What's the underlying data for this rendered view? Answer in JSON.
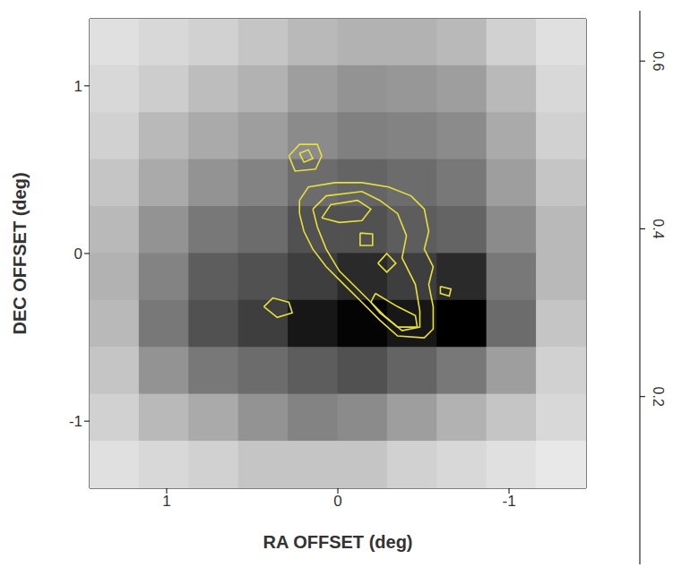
{
  "chart_data": {
    "type": "heatmap",
    "x_label": "RA OFFSET (deg)",
    "y_label": "DEC OFFSET (deg)",
    "xlim": [
      1.45,
      -1.45
    ],
    "xticks": [
      1,
      0,
      -1
    ],
    "ylim": [
      -1.4,
      1.4
    ],
    "yticks": [
      -1,
      0,
      1
    ],
    "x_centers": [
      1.305,
      1.015,
      0.725,
      0.435,
      0.145,
      -0.145,
      -0.435,
      -0.725,
      -1.015,
      -1.305
    ],
    "y_centers": [
      1.26,
      0.98,
      0.7,
      0.42,
      0.14,
      -0.14,
      -0.42,
      -0.7,
      -0.98,
      -1.26
    ],
    "cells": [
      [
        0.08,
        0.1,
        0.12,
        0.15,
        0.18,
        0.2,
        0.2,
        0.18,
        0.12,
        0.08
      ],
      [
        0.1,
        0.13,
        0.17,
        0.2,
        0.25,
        0.28,
        0.27,
        0.25,
        0.18,
        0.1
      ],
      [
        0.12,
        0.18,
        0.22,
        0.25,
        0.3,
        0.33,
        0.32,
        0.3,
        0.22,
        0.12
      ],
      [
        0.15,
        0.22,
        0.28,
        0.32,
        0.38,
        0.4,
        0.38,
        0.35,
        0.25,
        0.15
      ],
      [
        0.18,
        0.28,
        0.35,
        0.38,
        0.45,
        0.45,
        0.42,
        0.4,
        0.3,
        0.18
      ],
      [
        0.2,
        0.32,
        0.42,
        0.45,
        0.5,
        0.55,
        0.5,
        0.55,
        0.35,
        0.18
      ],
      [
        0.18,
        0.35,
        0.45,
        0.5,
        0.6,
        0.65,
        0.6,
        0.68,
        0.38,
        0.15
      ],
      [
        0.15,
        0.28,
        0.35,
        0.38,
        0.42,
        0.45,
        0.4,
        0.35,
        0.25,
        0.12
      ],
      [
        0.12,
        0.18,
        0.22,
        0.28,
        0.32,
        0.3,
        0.25,
        0.2,
        0.15,
        0.1
      ],
      [
        0.08,
        0.1,
        0.12,
        0.15,
        0.15,
        0.15,
        0.12,
        0.1,
        0.08,
        0.06
      ]
    ],
    "colorbar_range": [
      0,
      0.66
    ],
    "colorbar_ticks": [
      0.2,
      0.4,
      0.6
    ],
    "color": "#e6e03c",
    "contours": [
      {
        "x": [
          0.224,
          0.172,
          0.016,
          -0.141,
          -0.297,
          -0.427,
          -0.505,
          -0.531,
          -0.505,
          -0.557,
          -0.531,
          -0.557,
          -0.557,
          -0.505,
          -0.349,
          -0.245,
          -0.141,
          -0.036,
          0.068,
          0.146,
          0.198,
          0.224
        ],
        "y": [
          0.317,
          0.397,
          0.423,
          0.423,
          0.397,
          0.344,
          0.265,
          0.132,
          0.026,
          -0.079,
          -0.185,
          -0.317,
          -0.45,
          -0.503,
          -0.492,
          -0.397,
          -0.291,
          -0.185,
          -0.079,
          0.026,
          0.132,
          0.238
        ]
      },
      {
        "x": [
          0.146,
          0.068,
          -0.141,
          -0.245,
          -0.349,
          -0.401,
          -0.375,
          -0.453,
          -0.479,
          -0.479,
          -0.375,
          -0.271,
          -0.141,
          -0.01,
          0.068,
          0.12
        ],
        "y": [
          0.265,
          0.344,
          0.37,
          0.317,
          0.238,
          0.106,
          -0.026,
          -0.185,
          -0.344,
          -0.439,
          -0.46,
          -0.37,
          -0.238,
          -0.106,
          0.026,
          0.159
        ]
      },
      {
        "x": [
          0.094,
          0.042,
          -0.115,
          -0.193,
          -0.141,
          -0.01
        ],
        "y": [
          0.212,
          0.291,
          0.317,
          0.265,
          0.196,
          0.185
        ]
      },
      {
        "x": [
          -0.13,
          -0.203,
          -0.203,
          -0.13
        ],
        "y": [
          0.122,
          0.116,
          0.048,
          0.048
        ]
      },
      {
        "x": [
          -0.234,
          -0.286,
          -0.339,
          -0.286
        ],
        "y": [
          -0.058,
          0.0,
          -0.058,
          -0.111
        ]
      },
      {
        "x": [
          -0.219,
          -0.349,
          -0.453,
          -0.464,
          -0.349,
          -0.245,
          -0.193
        ],
        "y": [
          -0.238,
          -0.317,
          -0.37,
          -0.439,
          -0.439,
          -0.354,
          -0.291
        ]
      },
      {
        "x": [
          0.286,
          0.224,
          0.12,
          0.094,
          0.13,
          0.25
        ],
        "y": [
          0.582,
          0.651,
          0.651,
          0.582,
          0.503,
          0.492
        ]
      },
      {
        "x": [
          0.224,
          0.172,
          0.146,
          0.198
        ],
        "y": [
          0.598,
          0.619,
          0.566,
          0.545
        ]
      },
      {
        "x": [
          0.432,
          0.38,
          0.286,
          0.266,
          0.354
        ],
        "y": [
          -0.317,
          -0.265,
          -0.291,
          -0.354,
          -0.381
        ]
      },
      {
        "x": [
          -0.599,
          -0.661,
          -0.651,
          -0.599
        ],
        "y": [
          -0.196,
          -0.212,
          -0.254,
          -0.238
        ]
      }
    ]
  }
}
